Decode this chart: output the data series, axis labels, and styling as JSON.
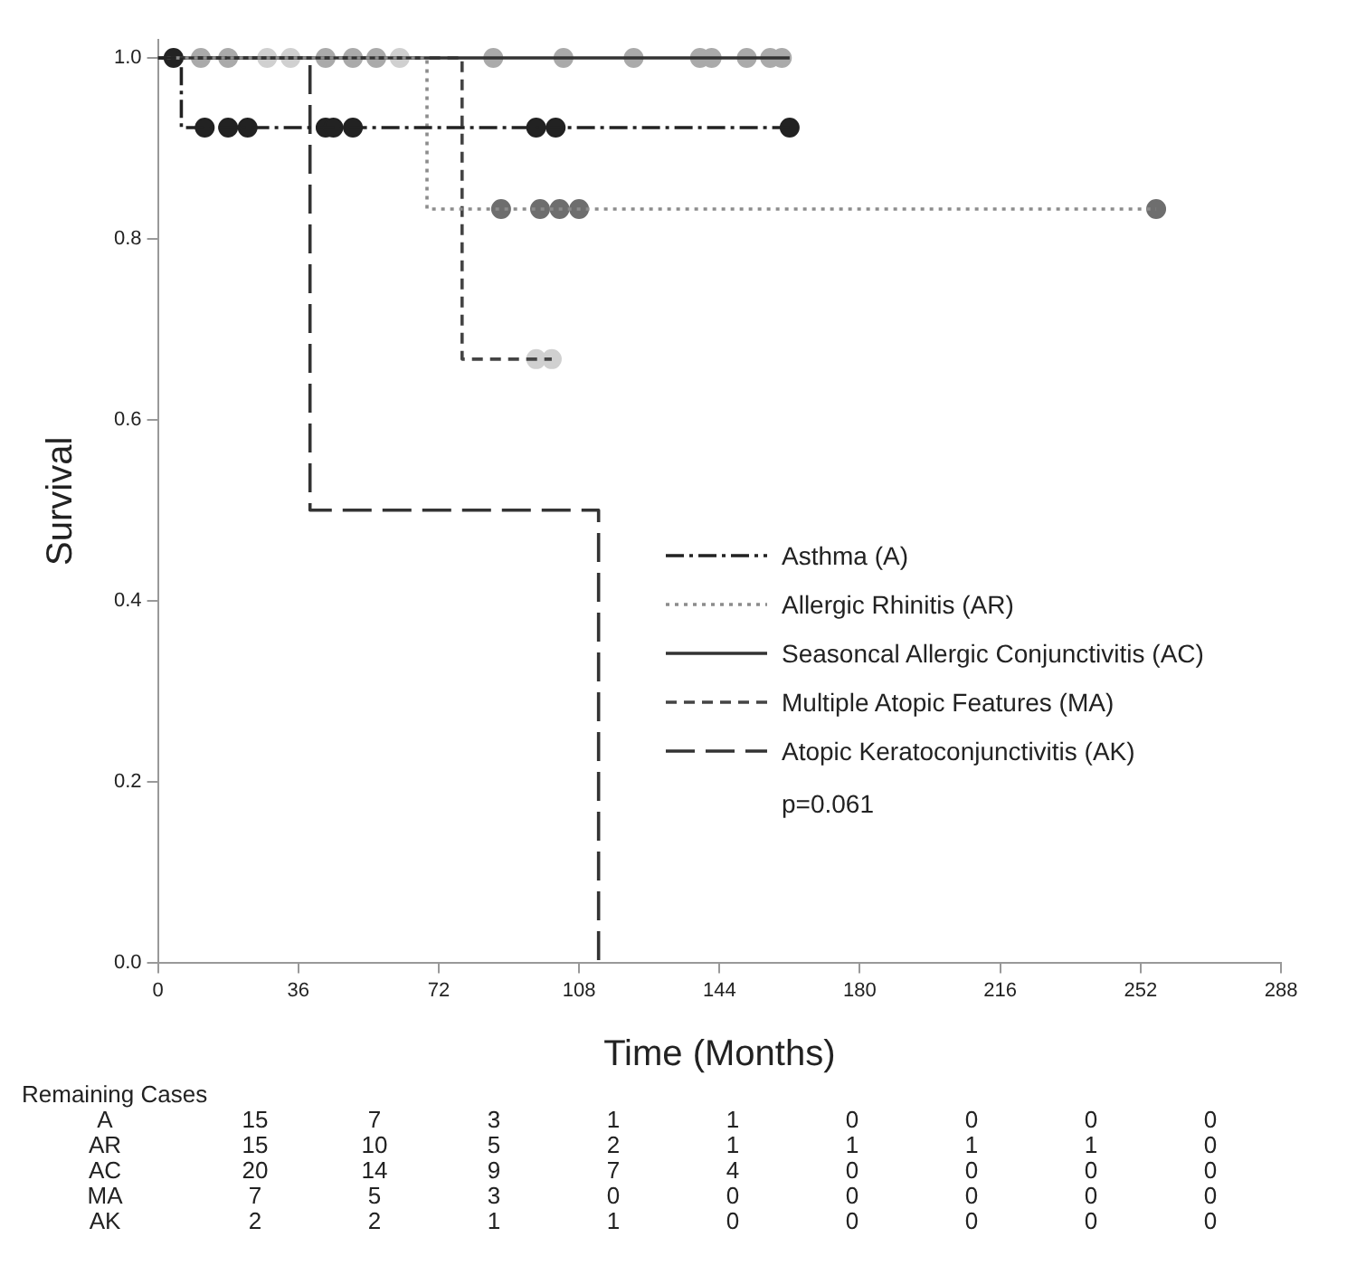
{
  "chart_data": {
    "type": "step",
    "xlabel": "Time (Months)",
    "ylabel": "Survival",
    "xlim": [
      0,
      288
    ],
    "xticks": [
      0,
      36,
      72,
      108,
      144,
      180,
      216,
      252,
      288
    ],
    "ylim": [
      0,
      1.02
    ],
    "yticks": [
      {
        "value": 0,
        "label": "0.0"
      },
      {
        "value": 0.2,
        "label": "0.2"
      },
      {
        "value": 0.4,
        "label": "0.4"
      },
      {
        "value": 0.6,
        "label": "0.6"
      },
      {
        "value": 0.8,
        "label": "0.8"
      },
      {
        "value": 1,
        "label": "1.0"
      }
    ],
    "grid": false,
    "legend": "right",
    "series": [
      {
        "name": "Asthma (A)",
        "color": "#222222",
        "line_style": "dashed",
        "x": [
          0,
          6,
          162
        ],
        "values": [
          1,
          0.923,
          0.923
        ]
      },
      {
        "name": "Allergic Rhinitis (AR)",
        "color": "#8c8c8c",
        "line_style": "dotted",
        "x": [
          0,
          69,
          256
        ],
        "values": [
          1,
          0.833,
          0.833
        ]
      },
      {
        "name": "Seasoncal Allergic Conjunctivitis (AC)",
        "color": "#333333",
        "line_style": "solid",
        "x": [
          0,
          162
        ],
        "values": [
          1,
          1
        ]
      },
      {
        "name": "Multiple Atopic Features (MA)",
        "color": "#444444",
        "line_style": "dashed",
        "x": [
          0,
          78,
          101
        ],
        "values": [
          1,
          0.667,
          0.667
        ]
      },
      {
        "name": "Atopic Keratoconjunctivitis (AK)",
        "color": "#333333",
        "line_style": "dashed",
        "x": [
          0,
          39,
          113
        ],
        "values": [
          1,
          0.5,
          0
        ]
      },
      {
        "type": "scatter",
        "color": "#222222",
        "marker": "circle",
        "x": [
          4,
          12,
          18,
          23,
          43,
          45,
          50,
          97,
          102,
          162
        ],
        "values": [
          1,
          0.923,
          0.923,
          0.923,
          0.923,
          0.923,
          0.923,
          0.923,
          0.923,
          0.923
        ]
      },
      {
        "type": "scatter",
        "color": "#6e6e6e",
        "marker": "circle",
        "x": [
          88,
          98,
          103,
          108,
          256
        ],
        "values": [
          0.833,
          0.833,
          0.833,
          0.833,
          0.833
        ]
      },
      {
        "type": "scatter",
        "color": "#aaaaaa",
        "marker": "circle",
        "x": [
          11,
          18,
          43,
          50,
          56,
          86,
          104,
          122,
          139,
          142,
          151,
          157,
          160
        ],
        "values": [
          1,
          1,
          1,
          1,
          1,
          1,
          1,
          1,
          1,
          1,
          1,
          1,
          1
        ]
      },
      {
        "type": "scatter",
        "color": "#d0d0d0",
        "marker": "circle",
        "x": [
          28,
          34,
          62,
          97,
          101
        ],
        "values": [
          1,
          1,
          1,
          0.667,
          0.667
        ]
      }
    ],
    "annotations": [
      "p=0.061",
      "Remaining Cases",
      "A 15 7 3 1 1 0 0 0 0",
      "AR 15 10 5 2 1 1 1 1 0",
      "AC 20 14 9 7 4 0 0 0 0",
      "MA 7 5 3 0 0 0 0 0 0",
      "AK 2 2 1 1 0 0 0 0 0"
    ]
  }
}
